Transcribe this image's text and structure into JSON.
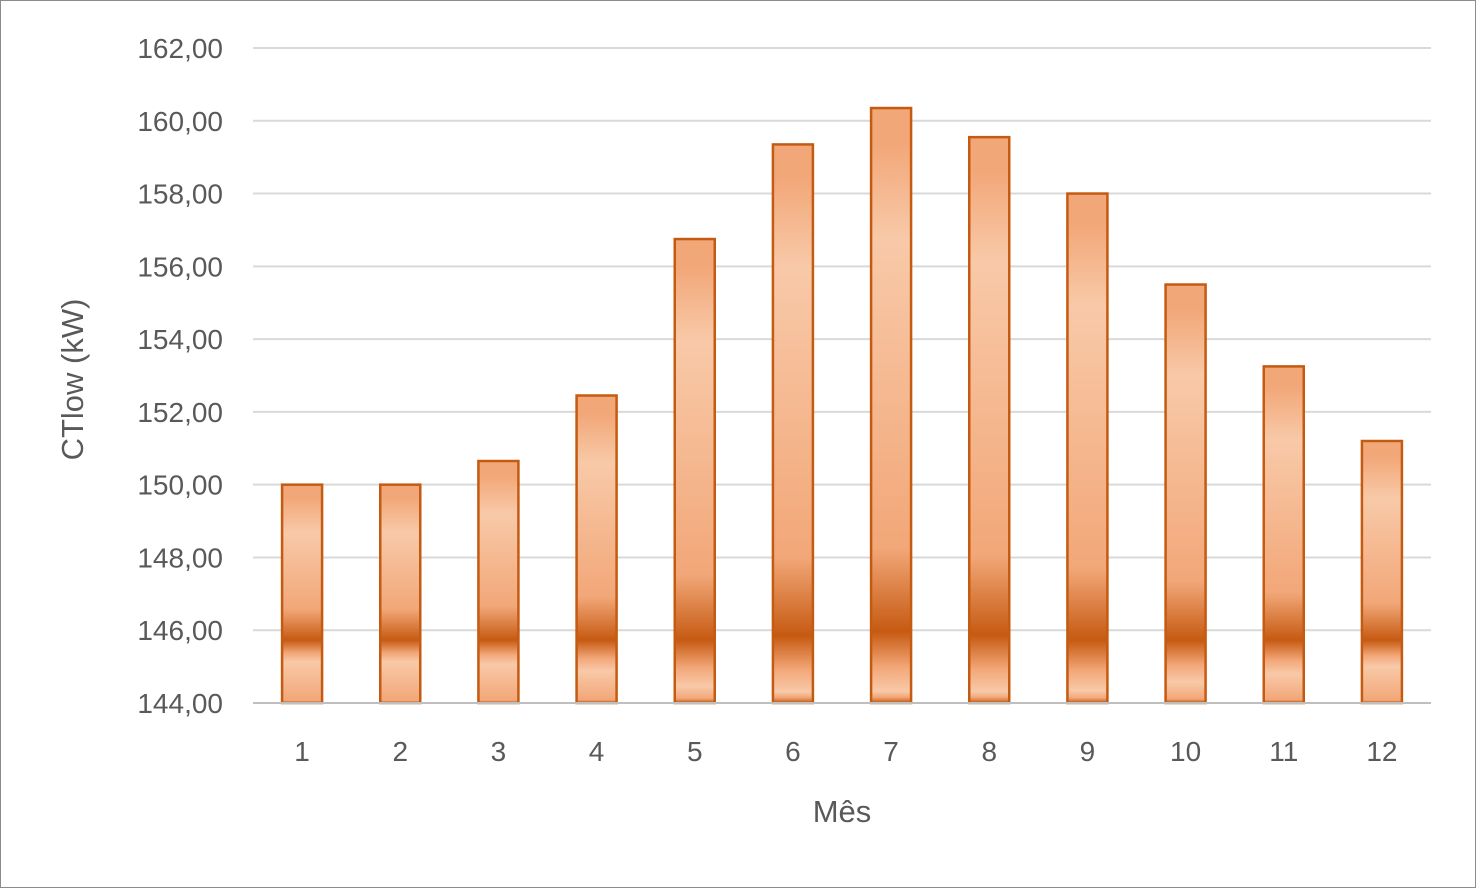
{
  "chart_data": {
    "type": "bar",
    "title": "",
    "xlabel": "Mês",
    "ylabel": "CTlow (kW)",
    "categories": [
      "1",
      "2",
      "3",
      "4",
      "5",
      "6",
      "7",
      "8",
      "9",
      "10",
      "11",
      "12"
    ],
    "values": [
      150.0,
      150.0,
      150.65,
      152.45,
      156.75,
      159.35,
      160.35,
      159.55,
      158.0,
      155.5,
      153.25,
      151.2
    ],
    "ylim": [
      144,
      162
    ],
    "ytick_values": [
      144,
      146,
      148,
      150,
      152,
      154,
      156,
      158,
      160,
      162
    ],
    "ytick_labels": [
      "144,00",
      "146,00",
      "148,00",
      "150,00",
      "152,00",
      "154,00",
      "156,00",
      "158,00",
      "160,00",
      "162,00"
    ],
    "grid": true,
    "legend": "none",
    "colors": {
      "bar_light": "#f8c9a8",
      "bar_mid": "#f2a778",
      "bar_dark": "#c65a12",
      "bar_border": "#c55a11",
      "grid": "#d9d9d9",
      "axis": "#bfbfbf",
      "text": "#595959"
    }
  }
}
